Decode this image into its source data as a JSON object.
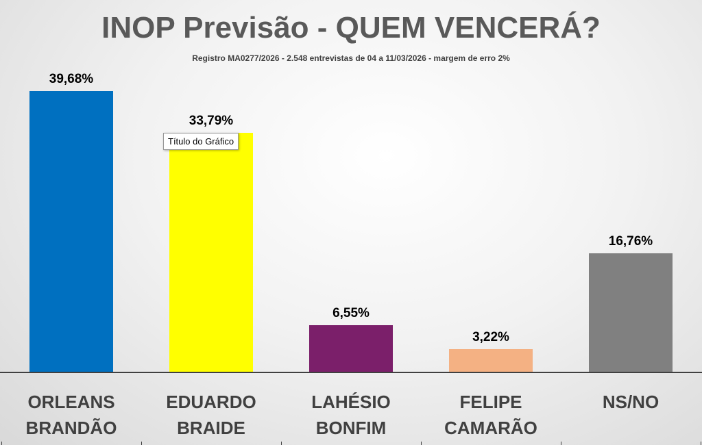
{
  "chart_data": {
    "type": "bar",
    "title": "INOP Previsão - QUEM VENCERÁ?",
    "subtitle": "Registro MA0277/2026 - 2.548 entrevistas de 04 a 11/03/2026 - margem de erro 2%",
    "categories": [
      "ORLEANS BRANDÃO",
      "EDUARDO BRAIDE",
      "LAHÉSIO BONFIM",
      "FELIPE CAMARÃO",
      "NS/NO"
    ],
    "values": [
      39.68,
      33.79,
      6.55,
      3.22,
      16.76
    ],
    "value_labels": [
      "39,68%",
      "33,79%",
      "6,55%",
      "3,22%",
      "16,76%"
    ],
    "colors": [
      "#0070c0",
      "#ffff00",
      "#7b1f6a",
      "#f4b183",
      "#808080"
    ],
    "tooltip": "Título do Gráfico"
  }
}
